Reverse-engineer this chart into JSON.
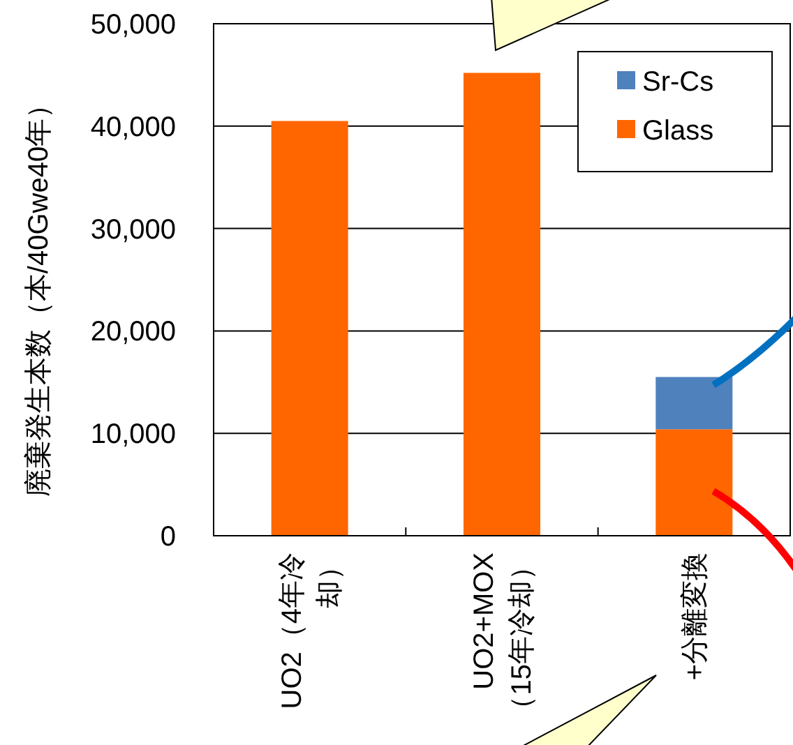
{
  "chart_data": {
    "type": "bar",
    "stacked": true,
    "ylabel": "廃棄発生本数（本/40Gwe40年）",
    "categories": [
      "UO2（4年冷却）",
      "UO2+MOX（15年冷却）",
      "+分離変換"
    ],
    "series": [
      {
        "name": "Glass",
        "color": "#ff6600",
        "values": [
          40500,
          45200,
          10400
        ]
      },
      {
        "name": "Sr-Cs",
        "color": "#4f81bd",
        "values": [
          null,
          null,
          5100
        ]
      }
    ],
    "ylim": [
      0,
      50000
    ],
    "yticks": [
      {
        "value": 0,
        "label": "0"
      },
      {
        "value": 10000,
        "label": "10,000"
      },
      {
        "value": 20000,
        "label": "20,000"
      },
      {
        "value": 30000,
        "label": "30,000"
      },
      {
        "value": 40000,
        "label": "40,000"
      },
      {
        "value": 50000,
        "label": "50,000"
      }
    ],
    "grid": "y",
    "legend": "top right"
  }
}
